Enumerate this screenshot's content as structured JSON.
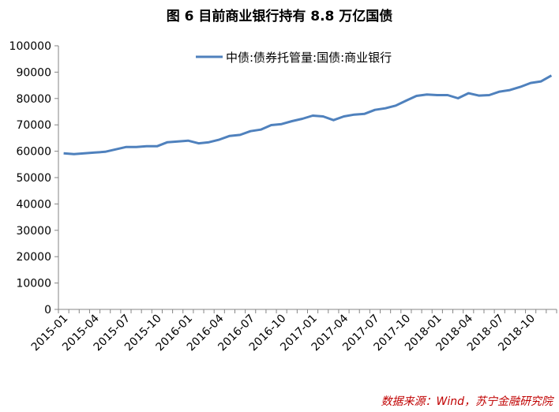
{
  "chart_data": {
    "type": "line",
    "title": "图 6 目前商业银行持有 8.8 万亿国债",
    "source": "数据来源：Wind，苏宁金融研究院",
    "ylim": [
      0,
      100000
    ],
    "y_ticks": [
      "0",
      "10000",
      "20000",
      "30000",
      "40000",
      "50000",
      "60000",
      "70000",
      "80000",
      "90000",
      "100000"
    ],
    "x_ticks": [
      "2015-01",
      "2015-04",
      "2015-07",
      "2015-10",
      "2016-01",
      "2016-04",
      "2016-07",
      "2016-10",
      "2017-01",
      "2017-04",
      "2017-07",
      "2017-10",
      "2018-01",
      "2018-04",
      "2018-07",
      "2018-10"
    ],
    "legend_position": "top-center",
    "grid": false,
    "series": [
      {
        "name": "中债:债券托管量:国债:商业银行",
        "color": "#4f81bd",
        "x": [
          "2015-01",
          "2015-02",
          "2015-03",
          "2015-04",
          "2015-05",
          "2015-06",
          "2015-07",
          "2015-08",
          "2015-09",
          "2015-10",
          "2015-11",
          "2015-12",
          "2016-01",
          "2016-02",
          "2016-03",
          "2016-04",
          "2016-05",
          "2016-06",
          "2016-07",
          "2016-08",
          "2016-09",
          "2016-10",
          "2016-11",
          "2016-12",
          "2017-01",
          "2017-02",
          "2017-03",
          "2017-04",
          "2017-05",
          "2017-06",
          "2017-07",
          "2017-08",
          "2017-09",
          "2017-10",
          "2017-11",
          "2017-12",
          "2018-01",
          "2018-02",
          "2018-03",
          "2018-04",
          "2018-05",
          "2018-06",
          "2018-07",
          "2018-08",
          "2018-09",
          "2018-10",
          "2018-11",
          "2018-12"
        ],
        "values": [
          59200,
          58900,
          59200,
          59500,
          59800,
          60700,
          61600,
          61600,
          61900,
          61900,
          63400,
          63700,
          64000,
          63000,
          63400,
          64400,
          65800,
          66200,
          67600,
          68200,
          69900,
          70300,
          71400,
          72300,
          73500,
          73200,
          71800,
          73200,
          73900,
          74200,
          75700,
          76300,
          77300,
          79200,
          81000,
          81500,
          81300,
          81300,
          80100,
          82000,
          81100,
          81300,
          82600,
          83200,
          84400,
          85900,
          86500,
          88700
        ]
      }
    ]
  }
}
